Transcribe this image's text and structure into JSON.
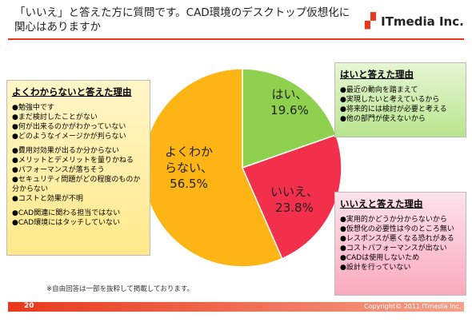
{
  "header": {
    "title": "「いいえ」と答えた方に質問です。CAD環境のデスクトップ仮想化に関心はありますか",
    "logo": "ITmedia Inc."
  },
  "chart_data": {
    "type": "pie",
    "categories": [
      "はい、",
      "いいえ、",
      "よくわからない、"
    ],
    "values": [
      19.6,
      23.8,
      56.5
    ],
    "value_labels": [
      "19.6%",
      "23.8%",
      "56.5%"
    ],
    "colors": [
      "#8fd14f",
      "#f2304c",
      "#fdb515"
    ]
  },
  "boxes": [
    {
      "title": "よくわからないと答えた理由",
      "groups": [
        [
          "●勉強中です",
          "●まだ検討したことがない",
          "●何が出来るのかがわかっていない",
          "●どのようなイメージかが判らない"
        ],
        [
          "●費用対効果が出るか分からない",
          "●メリットとデメリットを量りかねる",
          "●パフォーマンスが落ちそう",
          "●セキュリティ問題がどの程度のものか分からない",
          "●コストと効果が不明"
        ],
        [
          "●CAD関連に関わる担当ではない",
          "●CAD環境にはタッチしていない"
        ]
      ]
    },
    {
      "title": "はいと答えた理由",
      "groups": [
        [
          "●最近の動向を踏まえて",
          "●実現したいと考えているから",
          "●将来的には検討が必要と考える",
          "●他の部門が使えないから"
        ]
      ]
    },
    {
      "title": "いいえと答えた理由",
      "groups": [
        [
          "●実用的かどうか分からないから",
          "●仮想化の必要性は今のところ無い",
          "●レスポンスが悪くなる恐れがある",
          "●コストパフォーマンスが出ない",
          "●CADは使用しないため",
          "●設計を行っていない"
        ]
      ]
    }
  ],
  "footnote": "※自由回答は一部を抜粋して掲載しております。",
  "footer": {
    "page": "20",
    "copyright": "Copyright© 2011 ITmedia Inc."
  }
}
